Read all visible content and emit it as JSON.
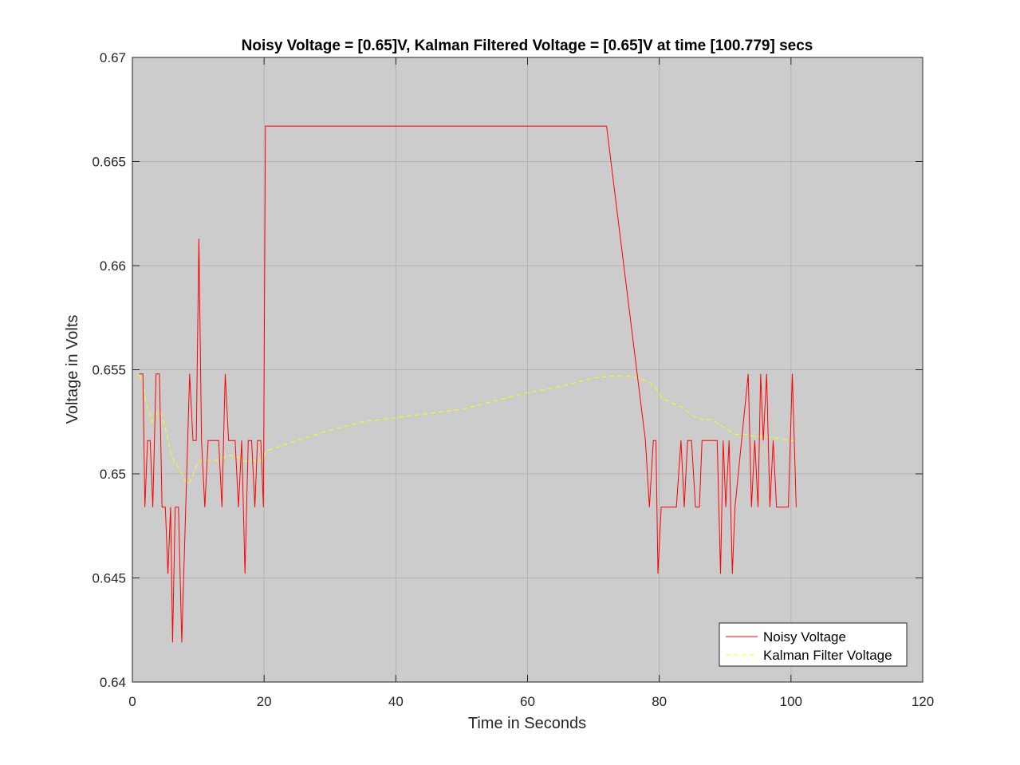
{
  "chart_data": {
    "type": "line",
    "title": "Noisy Voltage = [0.65]V, Kalman Filtered Voltage = [0.65]V at time [100.779] secs",
    "xlabel": "Time in Seconds",
    "ylabel": "Voltage in Volts",
    "xlim": [
      0,
      120
    ],
    "ylim": [
      0.64,
      0.67
    ],
    "xticks": [
      0,
      20,
      40,
      60,
      80,
      100,
      120
    ],
    "xtick_labels": [
      "0",
      "20",
      "40",
      "60",
      "80",
      "100",
      "120"
    ],
    "yticks": [
      0.64,
      0.645,
      0.65,
      0.655,
      0.66,
      0.665,
      0.67
    ],
    "ytick_labels": [
      "0.64",
      "0.645",
      "0.65",
      "0.655",
      "0.66",
      "0.665",
      "0.67"
    ],
    "grid": true,
    "background": "#cccccc",
    "legend_position": "bottom-right",
    "series": [
      {
        "name": "Noisy Voltage",
        "color": "#ff0000",
        "style": "solid",
        "points": [
          [
            1.0,
            0.6548
          ],
          [
            1.6,
            0.6548
          ],
          [
            1.9,
            0.6484
          ],
          [
            2.3,
            0.6516
          ],
          [
            2.7,
            0.6516
          ],
          [
            3.1,
            0.6484
          ],
          [
            3.6,
            0.6548
          ],
          [
            4.1,
            0.6548
          ],
          [
            4.5,
            0.6484
          ],
          [
            5.0,
            0.6484
          ],
          [
            5.4,
            0.6452
          ],
          [
            5.8,
            0.6484
          ],
          [
            6.1,
            0.6419
          ],
          [
            6.5,
            0.6484
          ],
          [
            7.0,
            0.6484
          ],
          [
            7.5,
            0.6419
          ],
          [
            8.1,
            0.6484
          ],
          [
            8.7,
            0.6548
          ],
          [
            9.2,
            0.6516
          ],
          [
            9.7,
            0.6516
          ],
          [
            10.1,
            0.6613
          ],
          [
            10.5,
            0.6516
          ],
          [
            11.0,
            0.6484
          ],
          [
            11.5,
            0.6516
          ],
          [
            12.0,
            0.6516
          ],
          [
            13.1,
            0.6516
          ],
          [
            13.6,
            0.6484
          ],
          [
            14.1,
            0.6548
          ],
          [
            14.6,
            0.6516
          ],
          [
            15.1,
            0.6516
          ],
          [
            15.6,
            0.6516
          ],
          [
            16.1,
            0.6484
          ],
          [
            16.6,
            0.6516
          ],
          [
            17.1,
            0.6452
          ],
          [
            17.6,
            0.6516
          ],
          [
            18.1,
            0.6516
          ],
          [
            18.6,
            0.6484
          ],
          [
            19.0,
            0.6516
          ],
          [
            19.5,
            0.6516
          ],
          [
            19.9,
            0.6484
          ],
          [
            20.2,
            0.6667
          ],
          [
            72.0,
            0.6667
          ],
          [
            77.9,
            0.6516
          ],
          [
            78.5,
            0.6484
          ],
          [
            79.1,
            0.6516
          ],
          [
            79.5,
            0.6516
          ],
          [
            79.8,
            0.6452
          ],
          [
            80.3,
            0.6484
          ],
          [
            81.0,
            0.6484
          ],
          [
            82.0,
            0.6484
          ],
          [
            82.6,
            0.6484
          ],
          [
            83.3,
            0.6516
          ],
          [
            83.8,
            0.6484
          ],
          [
            84.3,
            0.6516
          ],
          [
            84.9,
            0.6516
          ],
          [
            85.5,
            0.6484
          ],
          [
            86.1,
            0.6484
          ],
          [
            86.5,
            0.6516
          ],
          [
            87.4,
            0.6516
          ],
          [
            88.2,
            0.6516
          ],
          [
            88.8,
            0.6516
          ],
          [
            89.3,
            0.6452
          ],
          [
            89.7,
            0.6516
          ],
          [
            90.1,
            0.6484
          ],
          [
            90.6,
            0.6516
          ],
          [
            91.1,
            0.6452
          ],
          [
            91.5,
            0.6484
          ],
          [
            92.5,
            0.6516
          ],
          [
            93.5,
            0.6548
          ],
          [
            94.0,
            0.6484
          ],
          [
            94.5,
            0.6516
          ],
          [
            95.0,
            0.6484
          ],
          [
            95.4,
            0.6548
          ],
          [
            95.8,
            0.6516
          ],
          [
            96.3,
            0.6548
          ],
          [
            96.8,
            0.6484
          ],
          [
            97.3,
            0.6516
          ],
          [
            97.8,
            0.6484
          ],
          [
            99.0,
            0.6484
          ],
          [
            99.6,
            0.6484
          ],
          [
            100.2,
            0.6548
          ],
          [
            100.8,
            0.6484
          ]
        ]
      },
      {
        "name": "Kalman Filter Voltage",
        "color": "#ffff00",
        "style": "dashed",
        "points": [
          [
            1.0,
            0.6548
          ],
          [
            1.5,
            0.6545
          ],
          [
            2.0,
            0.6535
          ],
          [
            2.5,
            0.653
          ],
          [
            3.0,
            0.6525
          ],
          [
            3.5,
            0.6528
          ],
          [
            4.0,
            0.653
          ],
          [
            4.5,
            0.6528
          ],
          [
            5.0,
            0.6522
          ],
          [
            5.5,
            0.6515
          ],
          [
            6.0,
            0.6508
          ],
          [
            6.5,
            0.6505
          ],
          [
            7.0,
            0.6503
          ],
          [
            7.5,
            0.65
          ],
          [
            8.0,
            0.6497
          ],
          [
            8.5,
            0.6495
          ],
          [
            9.0,
            0.6498
          ],
          [
            9.5,
            0.6502
          ],
          [
            10.0,
            0.6506
          ],
          [
            11.0,
            0.6507
          ],
          [
            12.0,
            0.6506
          ],
          [
            13.0,
            0.6507
          ],
          [
            14.0,
            0.6508
          ],
          [
            15.0,
            0.6509
          ],
          [
            16.0,
            0.6508
          ],
          [
            17.0,
            0.6506
          ],
          [
            18.0,
            0.6507
          ],
          [
            19.0,
            0.6506
          ],
          [
            19.9,
            0.6507
          ],
          [
            20.3,
            0.6511
          ],
          [
            25.0,
            0.6516
          ],
          [
            30.0,
            0.6521
          ],
          [
            35.0,
            0.6525
          ],
          [
            40.0,
            0.6527
          ],
          [
            45.0,
            0.6529
          ],
          [
            50.0,
            0.6531
          ],
          [
            55.0,
            0.6535
          ],
          [
            60.0,
            0.6539
          ],
          [
            65.0,
            0.6542
          ],
          [
            70.0,
            0.6546
          ],
          [
            73.0,
            0.6547
          ],
          [
            75.0,
            0.6547
          ],
          [
            77.0,
            0.6546
          ],
          [
            78.5,
            0.6544
          ],
          [
            79.5,
            0.6541
          ],
          [
            80.5,
            0.6536
          ],
          [
            82.0,
            0.6534
          ],
          [
            83.5,
            0.6532
          ],
          [
            85.0,
            0.6528
          ],
          [
            86.5,
            0.6526
          ],
          [
            88.0,
            0.6526
          ],
          [
            89.5,
            0.6523
          ],
          [
            90.5,
            0.6521
          ],
          [
            91.5,
            0.6519
          ],
          [
            93.0,
            0.6519
          ],
          [
            94.5,
            0.6518
          ],
          [
            96.0,
            0.6518
          ],
          [
            98.0,
            0.6517
          ],
          [
            100.0,
            0.6516
          ],
          [
            100.8,
            0.6516
          ]
        ]
      }
    ]
  }
}
